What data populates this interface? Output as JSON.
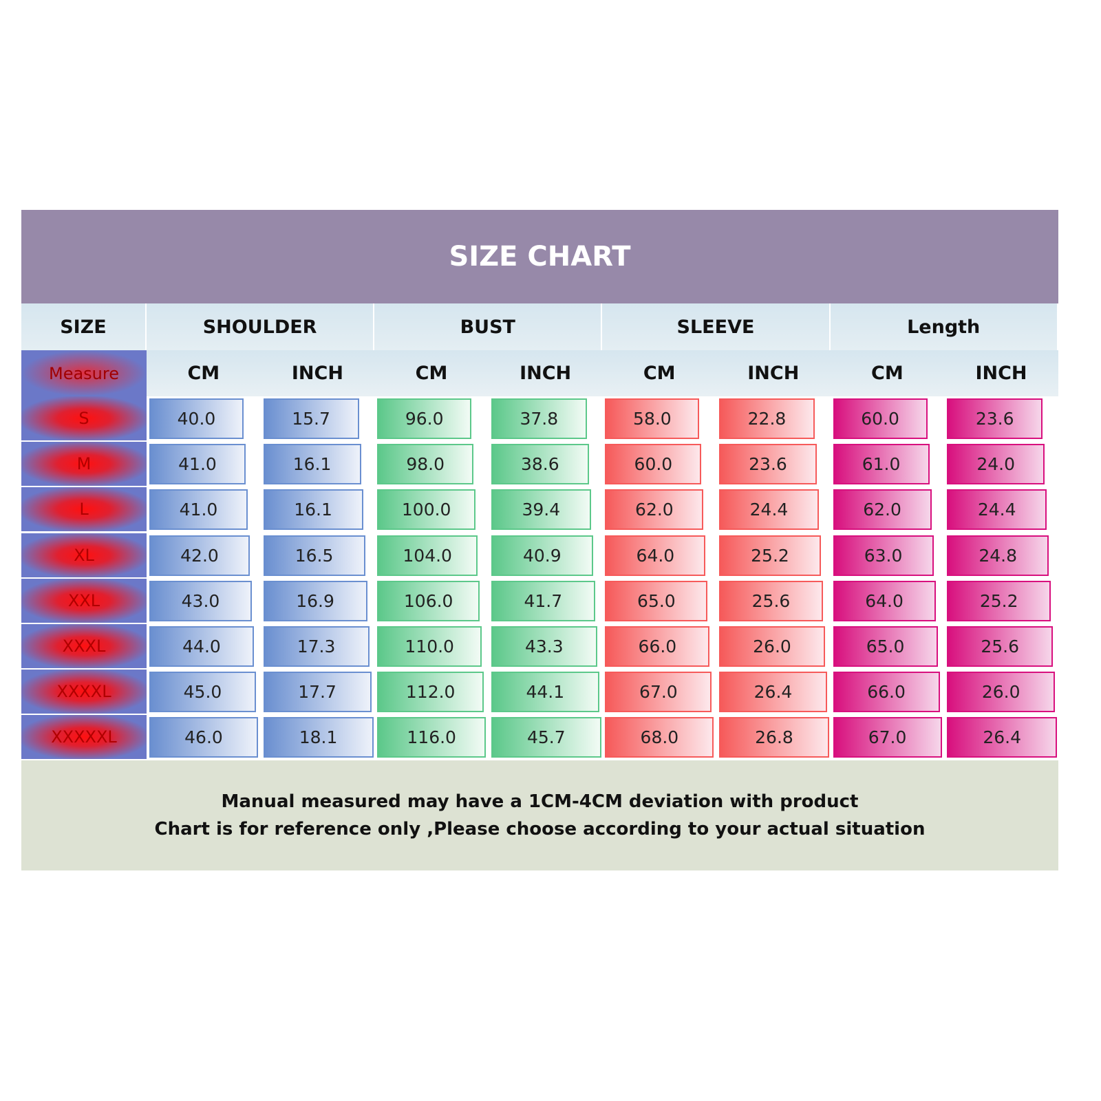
{
  "title": "SIZE CHART",
  "header": {
    "groups": [
      "SIZE",
      "SHOULDER",
      "BUST",
      "SLEEVE",
      "Length"
    ],
    "subheaders": [
      "Measure",
      "CM",
      "INCH",
      "CM",
      "INCH",
      "CM",
      "INCH",
      "CM",
      "INCH"
    ]
  },
  "table": {
    "rows": [
      [
        "S",
        "40.0",
        "15.7",
        "96.0",
        "37.8",
        "58.0",
        "22.8",
        "60.0",
        "23.6"
      ],
      [
        "M",
        "41.0",
        "16.1",
        "98.0",
        "38.6",
        "60.0",
        "23.6",
        "61.0",
        "24.0"
      ],
      [
        "L",
        "41.0",
        "16.1",
        "100.0",
        "39.4",
        "62.0",
        "24.4",
        "62.0",
        "24.4"
      ],
      [
        "XL",
        "42.0",
        "16.5",
        "104.0",
        "40.9",
        "64.0",
        "25.2",
        "63.0",
        "24.8"
      ],
      [
        "XXL",
        "43.0",
        "16.9",
        "106.0",
        "41.7",
        "65.0",
        "25.6",
        "64.0",
        "25.2"
      ],
      [
        "XXXL",
        "44.0",
        "17.3",
        "110.0",
        "43.3",
        "66.0",
        "26.0",
        "65.0",
        "25.6"
      ],
      [
        "XXXXL",
        "45.0",
        "17.7",
        "112.0",
        "44.1",
        "67.0",
        "26.4",
        "66.0",
        "26.0"
      ],
      [
        "XXXXXL",
        "46.0",
        "18.1",
        "116.0",
        "45.7",
        "68.0",
        "26.8",
        "67.0",
        "26.4"
      ]
    ]
  },
  "footer": {
    "lines": [
      "Manual measured may have a 1CM-4CM deviation with product",
      "Chart is for reference only ,Please choose according to your actual situation"
    ]
  }
}
